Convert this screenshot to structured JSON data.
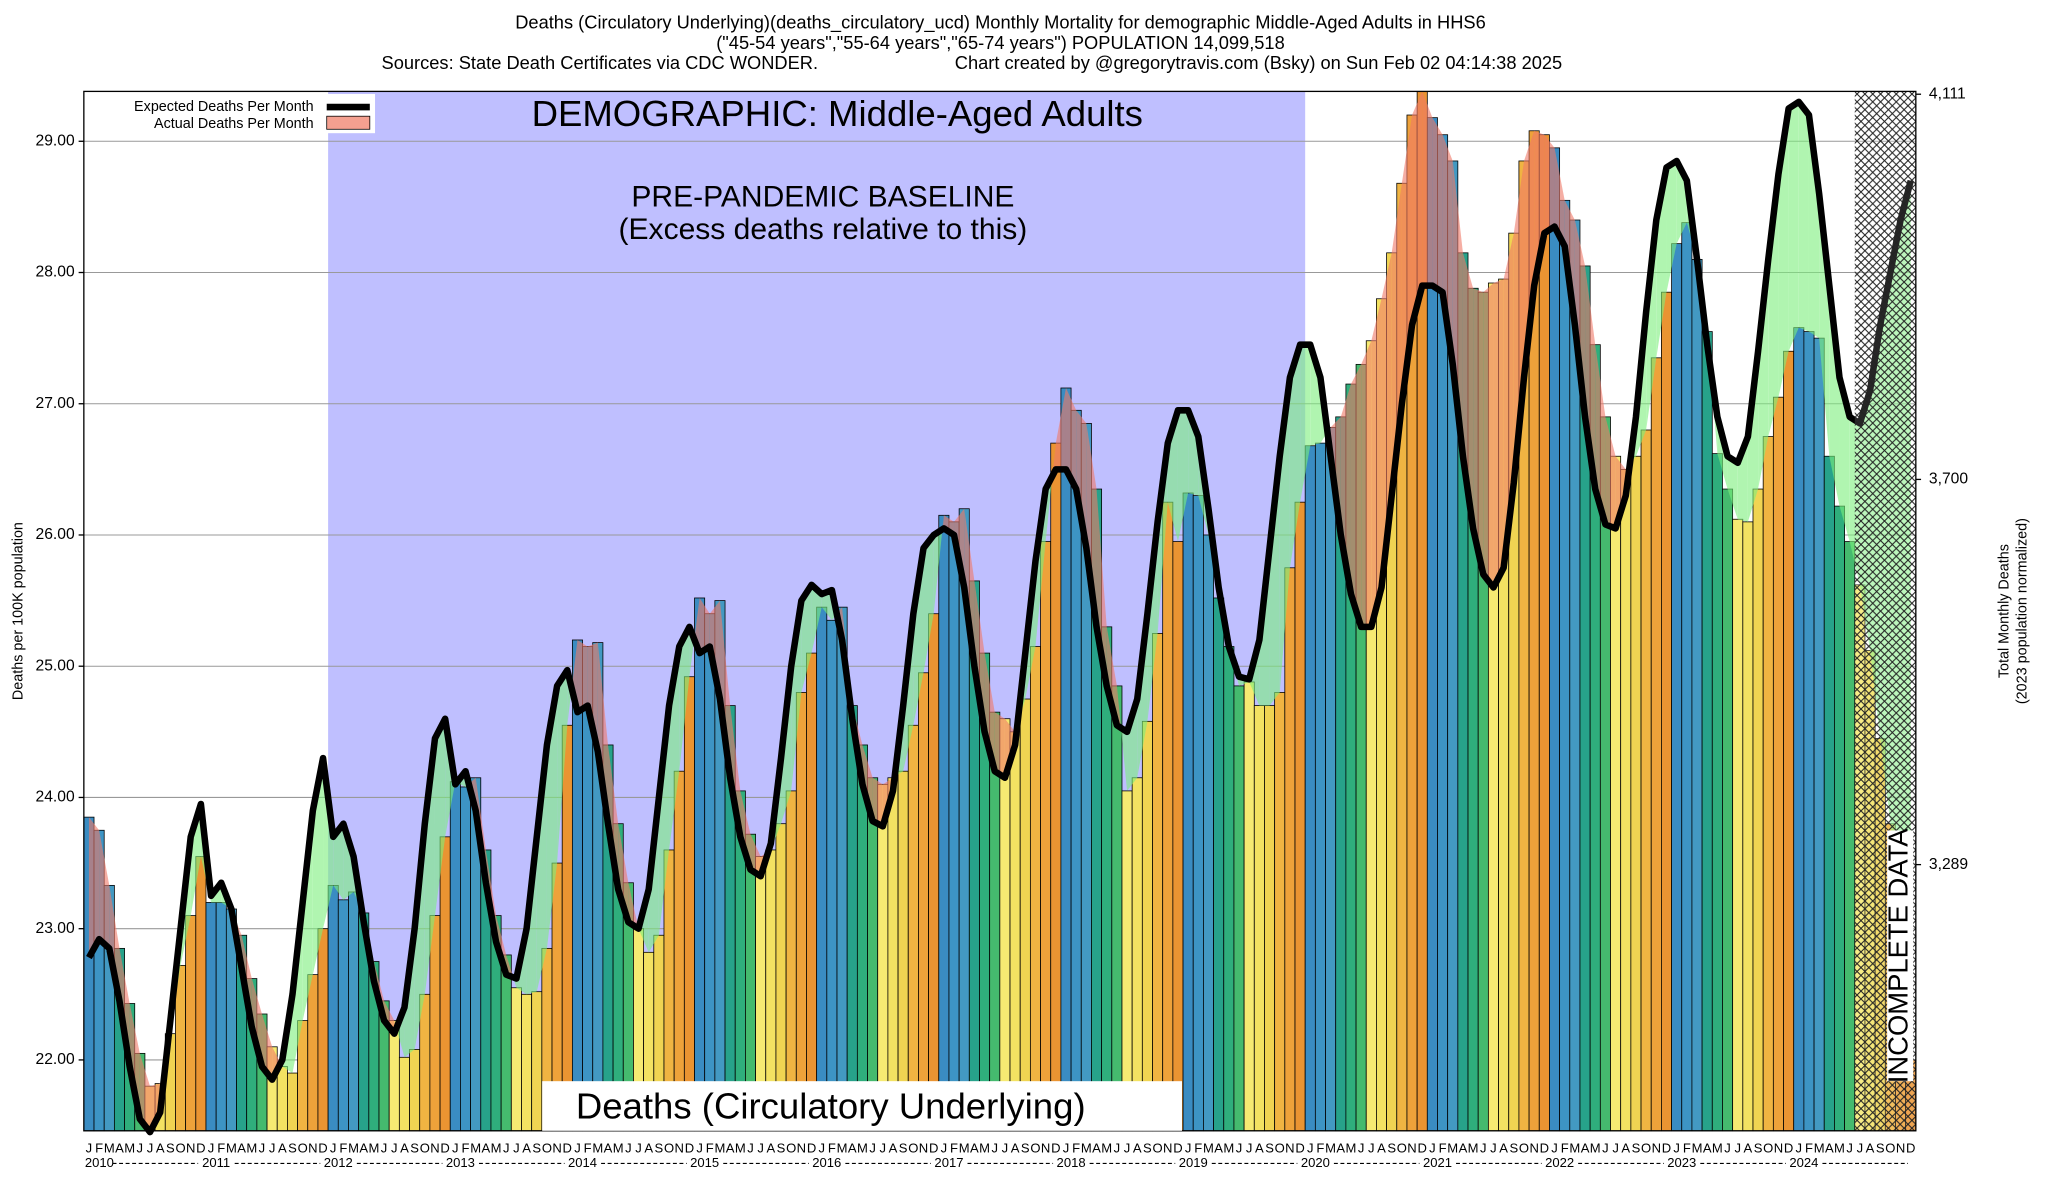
{
  "chart_data": {
    "type": "bar",
    "title": [
      "Deaths (Circulatory Underlying)(deaths_circulatory_ucd) Monthly Mortality for demographic Middle-Aged Adults in HHS6",
      "(\"45-54 years\",\"55-64 years\",\"65-74 years\") POPULATION 14,099,518"
    ],
    "sources": "Sources: State Death Certificates via CDC WONDER.",
    "credit": "Chart created by @gregorytravis.com (Bsky) on Sun Feb 02 04:14:38 2025",
    "ylabel": "Deaths per 100K population",
    "y2label": [
      "Total Monthly Deaths",
      "(2023 population normalized)"
    ],
    "annotations": {
      "demographic": "DEMOGRAPHIC: Middle-Aged Adults",
      "baseline": "PRE-PANDEMIC BASELINE",
      "baseline_note": "(Excess deaths relative to this)",
      "bottom_label": "Deaths (Circulatory Underlying)",
      "incomplete": "INCOMPLETE DATA"
    },
    "baseline_years": [
      2012,
      2019
    ],
    "baseline_color": "#bfbfff",
    "incomplete_months": 6,
    "years": [
      2010,
      2011,
      2012,
      2013,
      2014,
      2015,
      2016,
      2017,
      2018,
      2019,
      2020,
      2021,
      2022,
      2023,
      2024
    ],
    "month_letters": [
      "J",
      "F",
      "M",
      "A",
      "M",
      "J",
      "J",
      "A",
      "S",
      "O",
      "N",
      "D"
    ],
    "month_colors": [
      "#3a8cc2",
      "#3d94c4",
      "#4399c2",
      "#27a28a",
      "#2fae7c",
      "#45ba6e",
      "#f6ea72",
      "#f3e262",
      "#f0d452",
      "#f0b442",
      "#eea23a",
      "#ea9432"
    ],
    "excess_colors": {
      "above": "#f07a68",
      "below": "#7cf07c"
    },
    "legend": "upper left",
    "ylim": [
      21.46,
      29.38
    ],
    "yticks": [
      {
        "value": 22,
        "label": "22.00"
      },
      {
        "value": 23,
        "label": "23.00"
      },
      {
        "value": 24,
        "label": "24.00"
      },
      {
        "value": 25,
        "label": "25.00"
      },
      {
        "value": 26,
        "label": "26.00"
      },
      {
        "value": 27,
        "label": "27.00"
      },
      {
        "value": 28,
        "label": "28.00"
      },
      {
        "value": 29,
        "label": "29.00"
      }
    ],
    "y2lim": [
      3005,
      4114
    ],
    "y2ticks": [
      {
        "value": 3289,
        "label": "3,289"
      },
      {
        "value": 3700,
        "label": "3,700"
      },
      {
        "value": 4111,
        "label": "4,111"
      }
    ],
    "grid": true,
    "series": [
      {
        "name": "Expected Deaths Per Month",
        "color": "#000000",
        "values": [
          22.78,
          22.92,
          22.85,
          22.45,
          21.95,
          21.55,
          21.45,
          21.6,
          22.3,
          23.0,
          23.7,
          23.95,
          23.25,
          23.35,
          23.15,
          22.7,
          22.25,
          21.95,
          21.85,
          22.0,
          22.5,
          23.2,
          23.9,
          24.3,
          23.7,
          23.8,
          23.55,
          23.05,
          22.6,
          22.3,
          22.2,
          22.4,
          23.0,
          23.8,
          24.45,
          24.6,
          24.1,
          24.2,
          23.9,
          23.35,
          22.9,
          22.65,
          22.62,
          23.0,
          23.7,
          24.4,
          24.85,
          24.97,
          24.65,
          24.7,
          24.35,
          23.8,
          23.3,
          23.05,
          23.0,
          23.3,
          24.0,
          24.7,
          25.15,
          25.3,
          25.1,
          25.15,
          24.75,
          24.15,
          23.7,
          23.45,
          23.4,
          23.65,
          24.3,
          25.0,
          25.5,
          25.62,
          25.55,
          25.58,
          25.2,
          24.6,
          24.1,
          23.82,
          23.78,
          24.05,
          24.7,
          25.4,
          25.9,
          26.0,
          26.05,
          26.0,
          25.6,
          25.0,
          24.5,
          24.2,
          24.15,
          24.4,
          25.1,
          25.8,
          26.35,
          26.5,
          26.5,
          26.35,
          25.9,
          25.3,
          24.85,
          24.55,
          24.5,
          24.75,
          25.4,
          26.1,
          26.7,
          26.95,
          26.95,
          26.75,
          26.2,
          25.6,
          25.15,
          24.92,
          24.9,
          25.2,
          25.9,
          26.6,
          27.2,
          27.45,
          27.45,
          27.2,
          26.6,
          26.0,
          25.55,
          25.3,
          25.3,
          25.6,
          26.3,
          27.0,
          27.6,
          27.9,
          27.9,
          27.85,
          27.3,
          26.6,
          26.05,
          25.7,
          25.6,
          25.75,
          26.4,
          27.2,
          27.9,
          28.3,
          28.35,
          28.2,
          27.6,
          26.9,
          26.35,
          26.08,
          26.05,
          26.3,
          26.9,
          27.7,
          28.4,
          28.8,
          28.85,
          28.7,
          28.1,
          27.45,
          26.9,
          26.6,
          26.55,
          26.75,
          27.4,
          28.1,
          28.75,
          29.25,
          29.3,
          29.2,
          28.6,
          27.9,
          27.2,
          26.9,
          26.85,
          27.1,
          27.6,
          28.0,
          28.4,
          28.7
        ]
      },
      {
        "name": "Actual Deaths Per Month",
        "color": "#f4a090",
        "values": [
          23.85,
          23.75,
          23.33,
          22.85,
          22.43,
          22.05,
          21.8,
          21.82,
          22.2,
          22.72,
          23.1,
          23.55,
          23.2,
          23.2,
          23.15,
          22.95,
          22.62,
          22.35,
          22.1,
          21.95,
          21.9,
          22.3,
          22.65,
          23.0,
          23.33,
          23.22,
          23.28,
          23.12,
          22.75,
          22.45,
          22.3,
          22.02,
          22.08,
          22.5,
          23.1,
          23.7,
          24.12,
          24.08,
          24.15,
          23.6,
          23.1,
          22.8,
          22.55,
          22.5,
          22.52,
          22.85,
          23.5,
          24.55,
          25.2,
          25.15,
          25.18,
          24.4,
          23.8,
          23.35,
          23.0,
          22.82,
          22.95,
          23.6,
          24.2,
          24.92,
          25.52,
          25.4,
          25.5,
          24.7,
          24.05,
          23.72,
          23.55,
          23.6,
          23.8,
          24.05,
          24.8,
          25.1,
          25.45,
          25.35,
          25.45,
          24.7,
          24.4,
          24.15,
          24.1,
          24.15,
          24.2,
          24.55,
          24.95,
          25.4,
          26.15,
          26.1,
          26.2,
          25.65,
          25.1,
          24.65,
          24.6,
          24.5,
          24.75,
          25.15,
          25.95,
          26.7,
          27.12,
          26.95,
          26.85,
          26.35,
          25.3,
          24.85,
          24.05,
          24.15,
          24.58,
          25.25,
          26.25,
          25.95,
          26.32,
          26.3,
          26.0,
          25.52,
          25.15,
          24.85,
          24.88,
          24.7,
          24.7,
          24.8,
          25.75,
          26.25,
          26.68,
          26.7,
          26.82,
          26.9,
          27.15,
          27.3,
          27.48,
          27.8,
          28.15,
          28.68,
          29.2,
          29.38,
          29.18,
          29.05,
          28.85,
          28.15,
          27.88,
          27.85,
          27.92,
          27.95,
          28.3,
          28.85,
          29.08,
          29.05,
          28.95,
          28.55,
          28.4,
          28.05,
          27.45,
          26.9,
          26.6,
          26.5,
          26.6,
          26.8,
          27.35,
          27.85,
          28.22,
          28.38,
          28.1,
          27.55,
          26.62,
          26.35,
          26.12,
          26.1,
          26.35,
          26.75,
          27.05,
          27.4,
          27.58,
          27.55,
          27.5,
          26.6,
          26.22,
          25.95,
          25.62,
          25.12,
          24.45,
          23.8,
          23.0,
          22.0
        ]
      }
    ]
  }
}
